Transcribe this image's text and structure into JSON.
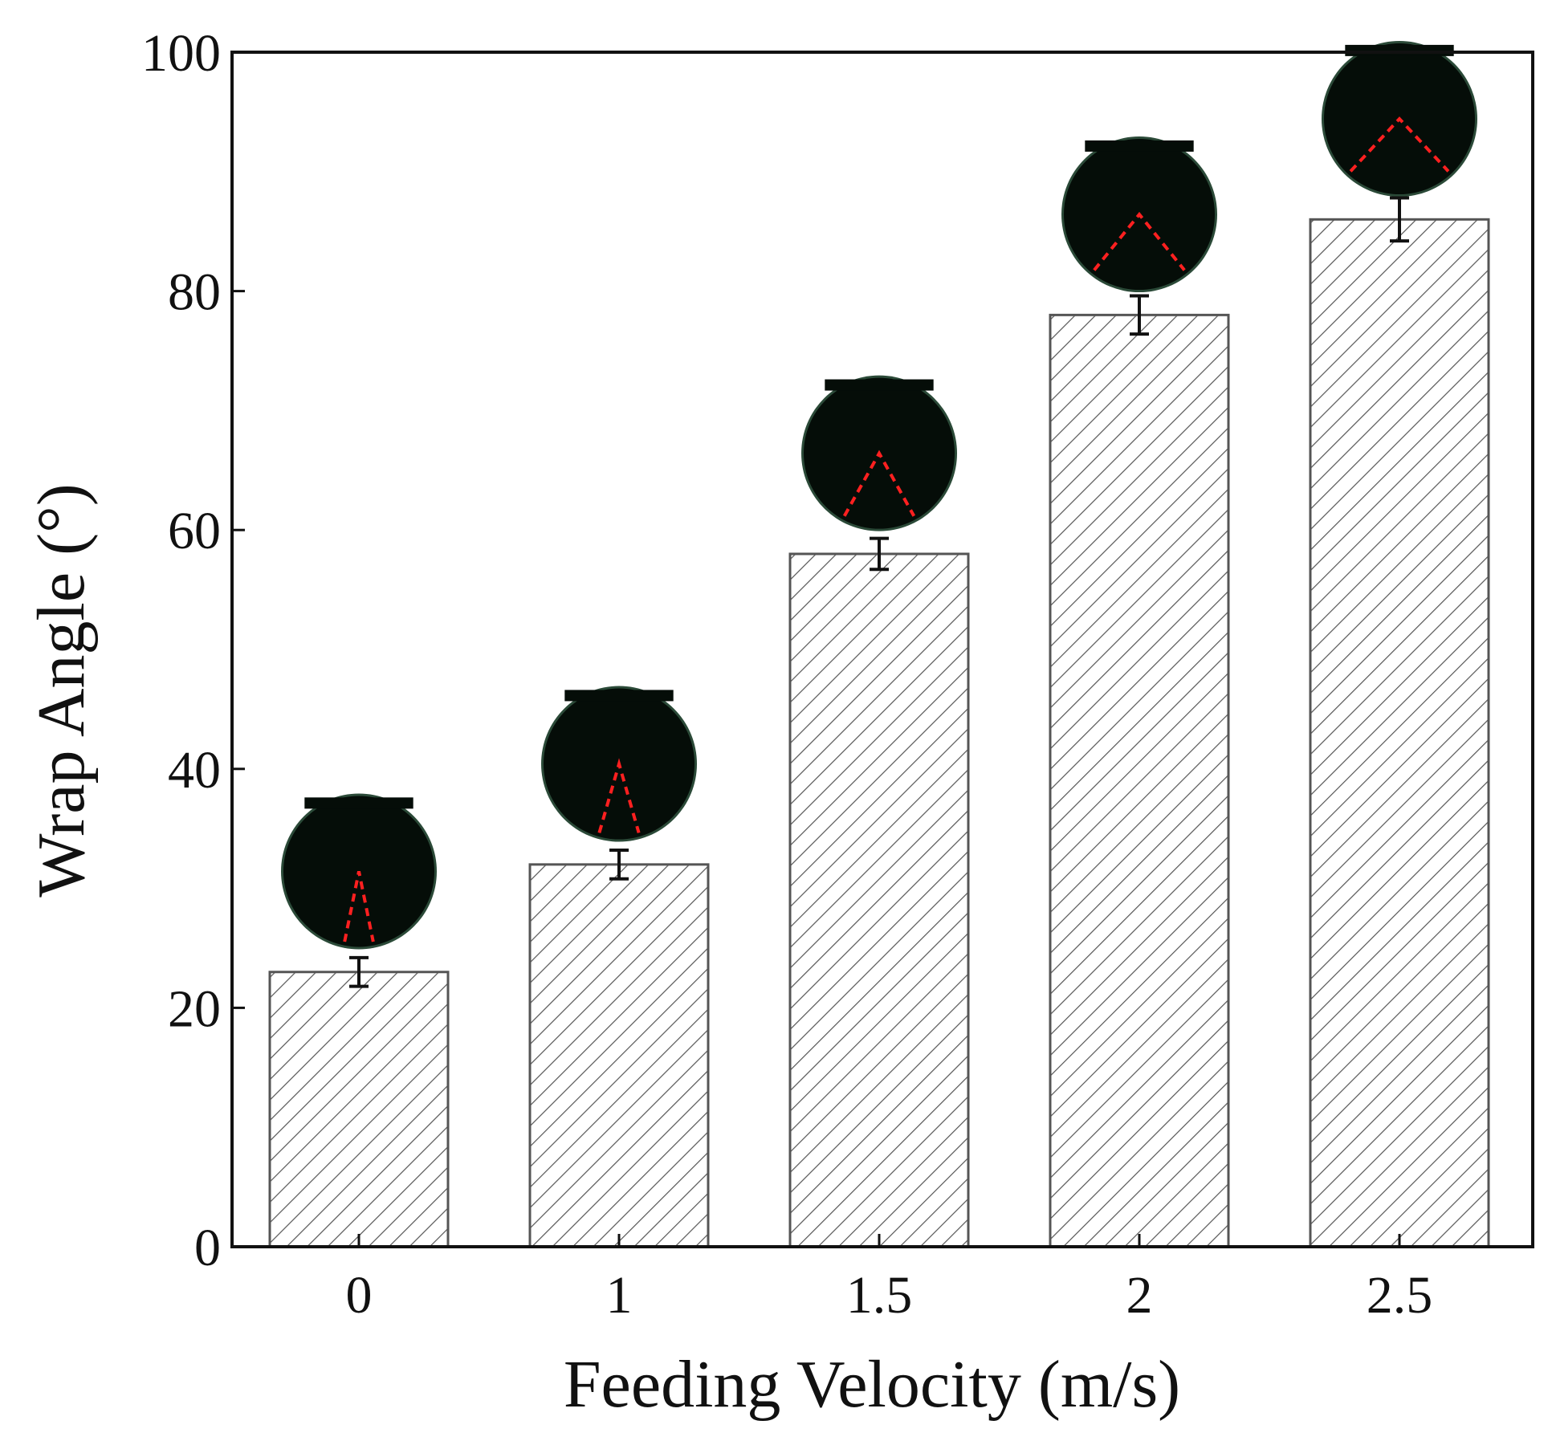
{
  "chart_data": {
    "type": "bar",
    "xlabel": "Feeding Velocity (m/s)",
    "ylabel": "Wrap Angle (°)",
    "categories": [
      "0",
      "1",
      "1.5",
      "2",
      "2.5"
    ],
    "values": [
      23,
      32,
      58,
      78,
      86
    ],
    "errors": [
      1.2,
      1.2,
      1.3,
      1.6,
      1.8
    ],
    "ylim": [
      0,
      100
    ],
    "yticks": [
      0,
      20,
      40,
      60,
      80,
      100
    ],
    "yticklabels": [
      "0",
      "20",
      "40",
      "60",
      "80",
      "100"
    ],
    "grid": false,
    "bar_fill": "hatched",
    "insets": "droplet photographs above each bar with red dashed angle lines",
    "colors": {
      "bar_edge": "#555555",
      "hatch": "#555555",
      "axis": "#111111",
      "droplet": "#050d08",
      "droplet_rim": "#2b4a38",
      "angle_line": "#ff2020"
    }
  }
}
